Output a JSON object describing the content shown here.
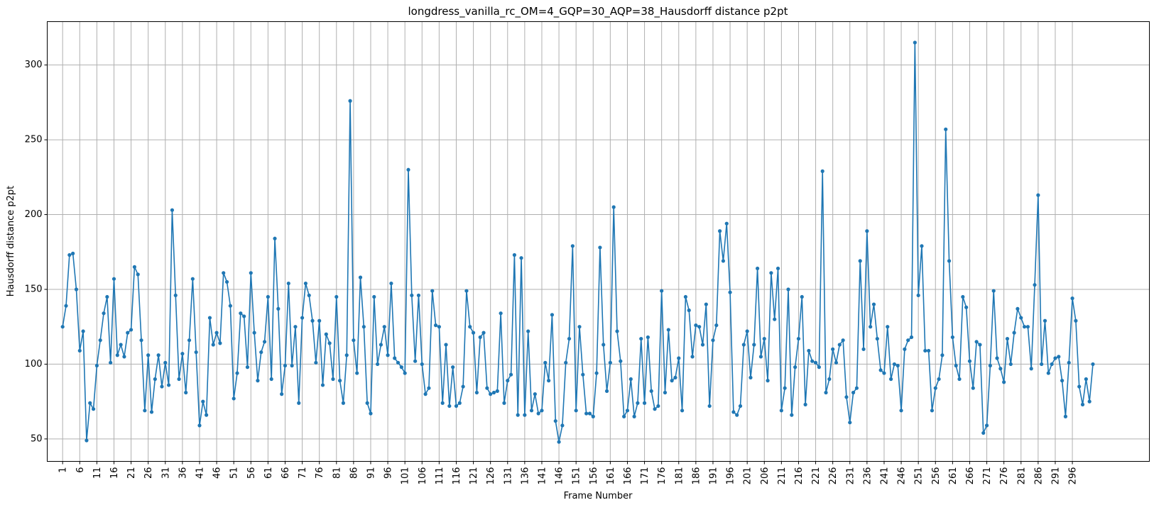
{
  "chart_data": {
    "type": "line",
    "title": "longdress_vanilla_rc_OM=4_GQP=30_AQP=38_Hausdorff distance p2pt",
    "xlabel": "Frame Number",
    "ylabel": "Hausdorff distance p2pt",
    "xlim": [
      -3.5,
      318.5
    ],
    "ylim": [
      35,
      329
    ],
    "x_ticks": [
      1,
      6,
      11,
      16,
      21,
      26,
      31,
      36,
      41,
      46,
      51,
      56,
      61,
      66,
      71,
      76,
      81,
      86,
      91,
      96,
      101,
      106,
      111,
      116,
      121,
      126,
      131,
      136,
      141,
      146,
      151,
      156,
      161,
      166,
      171,
      176,
      181,
      186,
      191,
      196,
      201,
      206,
      211,
      216,
      221,
      226,
      231,
      236,
      241,
      246,
      251,
      256,
      261,
      266,
      271,
      276,
      281,
      286,
      291,
      296
    ],
    "x_tick_labels": [
      "1",
      "6",
      "11",
      "16",
      "21",
      "26",
      "31",
      "36",
      "41",
      "46",
      "51",
      "56",
      "61",
      "66",
      "71",
      "76",
      "81",
      "86",
      "91",
      "96",
      "101",
      "106",
      "111",
      "116",
      "121",
      "126",
      "131",
      "136",
      "141",
      "146",
      "151",
      "156",
      "161",
      "166",
      "171",
      "176",
      "181",
      "186",
      "191",
      "196",
      "201",
      "206",
      "211",
      "216",
      "221",
      "226",
      "231",
      "236",
      "241",
      "246",
      "251",
      "256",
      "261",
      "266",
      "271",
      "276",
      "281",
      "286",
      "291",
      "296"
    ],
    "y_ticks": [
      50,
      100,
      150,
      200,
      250,
      300
    ],
    "y_tick_labels": [
      "50",
      "100",
      "150",
      "200",
      "250",
      "300"
    ],
    "grid": true,
    "x_start": 1,
    "series": [
      {
        "color": "#1f77b4",
        "marker": "circle",
        "values": [
          125,
          139,
          173,
          174,
          150,
          109,
          122,
          49,
          74,
          70,
          99,
          116,
          134,
          145,
          101,
          157,
          106,
          113,
          105,
          121,
          123,
          165,
          160,
          116,
          69,
          106,
          68,
          90,
          106,
          85,
          101,
          86,
          203,
          146,
          90,
          107,
          81,
          116,
          157,
          108,
          59,
          75,
          66,
          131,
          113,
          121,
          114,
          161,
          155,
          139,
          77,
          94,
          134,
          132,
          98,
          161,
          121,
          89,
          108,
          115,
          145,
          90,
          184,
          137,
          80,
          99,
          154,
          99,
          125,
          74,
          131,
          154,
          146,
          129,
          101,
          129,
          86,
          120,
          114,
          90,
          145,
          89,
          74,
          106,
          276,
          116,
          94,
          158,
          125,
          74,
          67,
          145,
          100,
          113,
          125,
          106,
          154,
          104,
          101,
          98,
          94,
          230,
          146,
          102,
          146,
          100,
          80,
          84,
          149,
          126,
          125,
          74,
          113,
          72,
          98,
          72,
          74,
          85,
          149,
          125,
          121,
          81,
          118,
          121,
          84,
          80,
          81,
          82,
          134,
          74,
          89,
          93,
          173,
          66,
          171,
          66,
          122,
          69,
          80,
          67,
          69,
          101,
          89,
          133,
          62,
          48,
          59,
          101,
          117,
          179,
          69,
          125,
          93,
          67,
          67,
          65,
          94,
          178,
          113,
          82,
          101,
          205,
          122,
          102,
          65,
          69,
          90,
          65,
          74,
          117,
          74,
          118,
          82,
          70,
          72,
          149,
          81,
          123,
          89,
          91,
          104,
          69,
          145,
          136,
          105,
          126,
          125,
          113,
          140,
          72,
          116,
          126,
          189,
          169,
          194,
          148,
          68,
          66,
          72,
          113,
          122,
          91,
          113,
          164,
          105,
          117,
          89,
          161,
          130,
          164,
          69,
          84,
          150,
          66,
          98,
          117,
          145,
          73,
          109,
          102,
          101,
          98,
          229,
          81,
          90,
          110,
          101,
          113,
          116,
          78,
          61,
          81,
          84,
          169,
          110,
          189,
          125,
          140,
          117,
          96,
          94,
          125,
          90,
          100,
          99,
          69,
          110,
          116,
          118,
          315,
          146,
          179,
          109,
          109,
          69,
          84,
          90,
          106,
          257,
          169,
          118,
          99,
          90,
          145,
          138,
          102,
          84,
          115,
          113,
          54,
          59,
          99,
          149,
          104,
          97,
          88,
          117,
          100,
          121,
          137,
          131,
          125,
          125,
          97,
          153,
          213,
          100,
          129,
          94,
          100,
          104,
          105,
          89,
          65,
          101,
          144,
          129,
          85,
          73,
          90,
          75,
          100
        ]
      }
    ]
  }
}
